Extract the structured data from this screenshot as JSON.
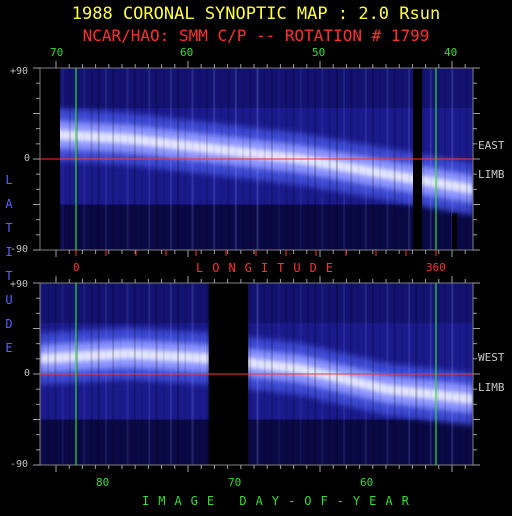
{
  "title": "1988 CORONAL SYNOPTIC MAP : 2.0 Rsun",
  "subtitle": "NCAR/HAO: SMM C/P -- ROTATION # 1799",
  "side_labels": {
    "top": [
      "EAST",
      "LIMB"
    ],
    "bottom": [
      "WEST",
      "LIMB"
    ]
  },
  "colors": {
    "title": "#ffff3c",
    "subtitle": "#ff3030",
    "axis_green": "#33dd33",
    "axis_red": "#ff3030",
    "latitude_label": "#5a62ff",
    "colormap": [
      "#000000",
      "#1a1a8c",
      "#3a46d0",
      "#8c94ff",
      "#ffffff"
    ]
  },
  "chart_data": [
    {
      "type": "heatmap",
      "panel": "east-limb",
      "ylabel": "LATITUDE",
      "xlabel": "LONGITUDE",
      "top_axis_ticks": [
        "70",
        "60",
        "50",
        "40"
      ],
      "bottom_axis_ticks": [
        "0",
        "360"
      ],
      "y_tick_labels": [
        "+90",
        "0",
        "-90"
      ],
      "ylim": [
        -90,
        90
      ],
      "bright_band_latitude": [
        25,
        20,
        10,
        0,
        -15,
        -30
      ],
      "data_gaps_longitude": [
        [
          0,
          10
        ],
        [
          350,
          360
        ]
      ]
    },
    {
      "type": "heatmap",
      "panel": "west-limb",
      "xlabel": "IMAGE DAY-OF-YEAR",
      "bottom_axis_ticks": [
        "80",
        "70",
        "60"
      ],
      "y_tick_labels": [
        "+90",
        "0",
        "-90"
      ],
      "ylim": [
        -90,
        90
      ],
      "bright_band_latitude": [
        15,
        20,
        15,
        5,
        -15,
        -25
      ],
      "data_gaps_day_of_year": [
        [
          69,
          72
        ]
      ]
    }
  ]
}
